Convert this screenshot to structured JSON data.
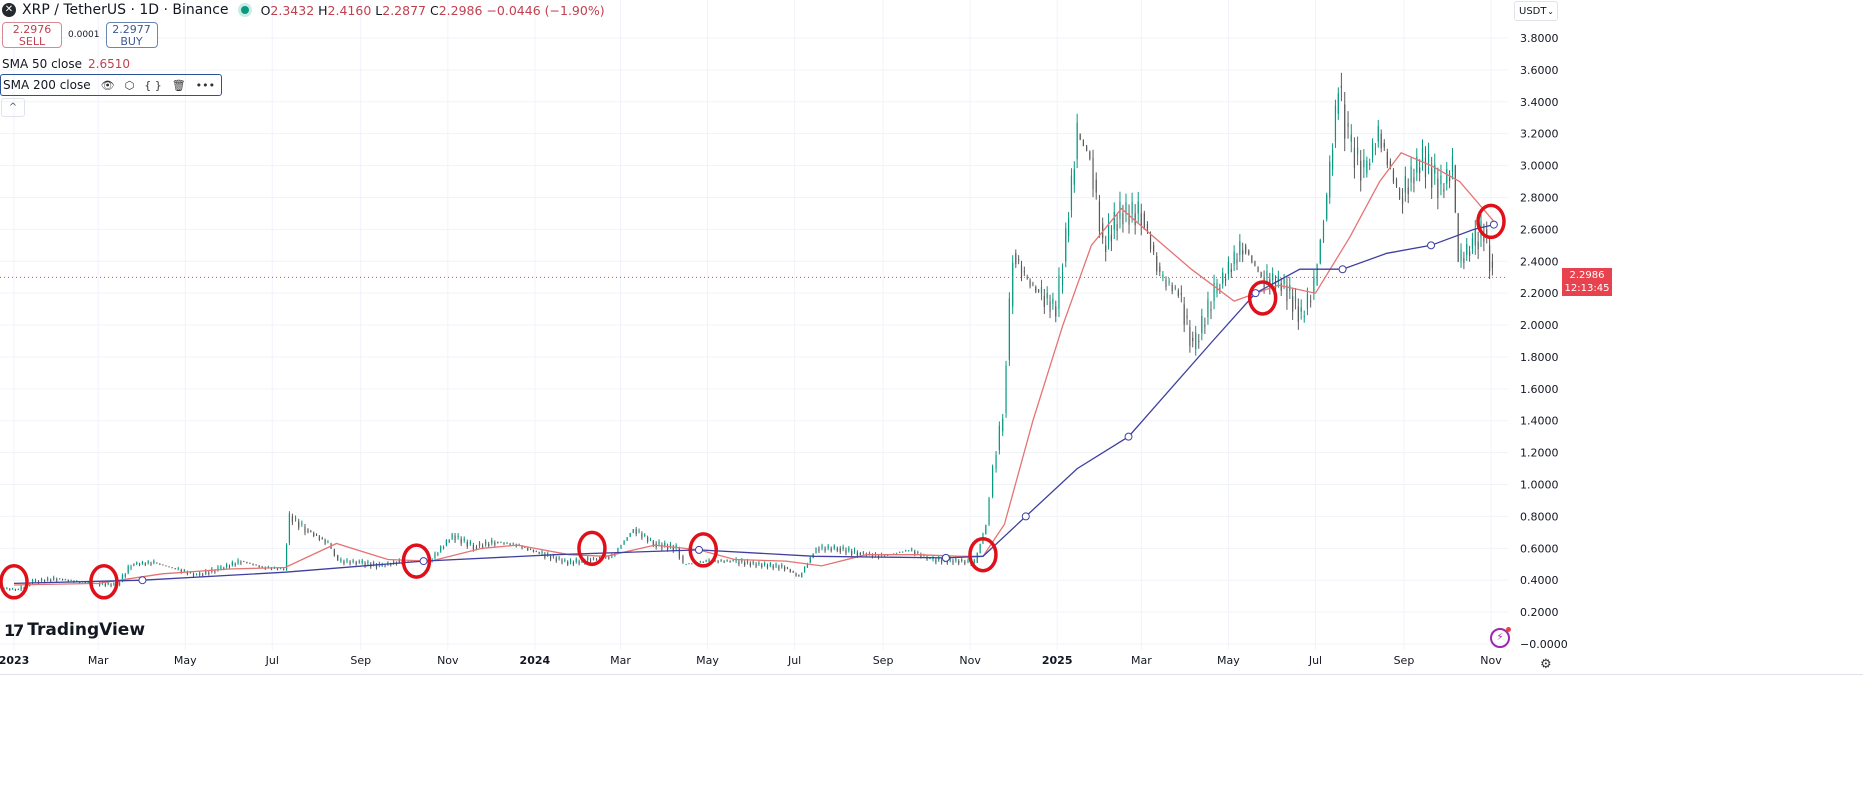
{
  "header": {
    "symbol_title": "XRP / TetherUS · 1D · Binance",
    "ohlc": {
      "o_label": "O",
      "o": "2.3432",
      "h_label": "H",
      "h": "2.4160",
      "l_label": "L",
      "l": "2.2877",
      "c_label": "C",
      "c": "2.2986",
      "change": "−0.0446 (−1.90%)"
    },
    "sell": {
      "price": "2.2976",
      "label": "SELL"
    },
    "spread": "0.0001",
    "buy": {
      "price": "2.2977",
      "label": "BUY"
    },
    "indicators": [
      {
        "label": "SMA 50 close",
        "value": "2.6510",
        "color": "#e57373"
      },
      {
        "label": "SMA 200 close",
        "color": "#3f3fa0",
        "icons": [
          "eye-icon",
          "settings-icon",
          "source-code-icon",
          "trash-icon",
          "more-icon"
        ]
      }
    ],
    "currency": "USDT",
    "logo": "TradingView"
  },
  "price_label": {
    "price": "2.2986",
    "countdown": "12:13:45",
    "color": "#e8424e"
  },
  "chart_data": {
    "type": "candlestick",
    "y_ticks": [
      "3.8000",
      "3.6000",
      "3.4000",
      "3.2000",
      "3.0000",
      "2.8000",
      "2.6000",
      "2.4000",
      "2.2000",
      "2.0000",
      "1.8000",
      "1.6000",
      "1.4000",
      "1.2000",
      "1.0000",
      "0.8000",
      "0.6000",
      "0.4000",
      "0.2000",
      "−0.0000"
    ],
    "ylim": [
      0,
      3.8
    ],
    "x_ticks": [
      {
        "label": "2023",
        "date": "2023-01-01"
      },
      {
        "label": "Mar",
        "date": "2023-03-01"
      },
      {
        "label": "May",
        "date": "2023-05-01"
      },
      {
        "label": "Jul",
        "date": "2023-07-01"
      },
      {
        "label": "Sep",
        "date": "2023-09-01"
      },
      {
        "label": "Nov",
        "date": "2023-11-01"
      },
      {
        "label": "2024",
        "date": "2024-01-01"
      },
      {
        "label": "Mar",
        "date": "2024-03-01"
      },
      {
        "label": "May",
        "date": "2024-05-01"
      },
      {
        "label": "Jul",
        "date": "2024-07-01"
      },
      {
        "label": "Sep",
        "date": "2024-09-01"
      },
      {
        "label": "Nov",
        "date": "2024-11-01"
      },
      {
        "label": "2025",
        "date": "2025-01-01"
      },
      {
        "label": "Mar",
        "date": "2025-03-01"
      },
      {
        "label": "May",
        "date": "2025-05-01"
      },
      {
        "label": "Jul",
        "date": "2025-07-01"
      },
      {
        "label": "Sep",
        "date": "2025-09-01"
      },
      {
        "label": "Nov",
        "date": "2025-11-01"
      }
    ],
    "price": [
      [
        "2022-12-22",
        0.35
      ],
      [
        "2023-01-05",
        0.34
      ],
      [
        "2023-01-15",
        0.39
      ],
      [
        "2023-02-01",
        0.41
      ],
      [
        "2023-02-15",
        0.39
      ],
      [
        "2023-03-01",
        0.38
      ],
      [
        "2023-03-15",
        0.37
      ],
      [
        "2023-03-25",
        0.5
      ],
      [
        "2023-04-10",
        0.51
      ],
      [
        "2023-04-25",
        0.47
      ],
      [
        "2023-05-10",
        0.43
      ],
      [
        "2023-05-25",
        0.47
      ],
      [
        "2023-06-10",
        0.52
      ],
      [
        "2023-06-25",
        0.48
      ],
      [
        "2023-07-10",
        0.47
      ],
      [
        "2023-07-14",
        0.8
      ],
      [
        "2023-07-25",
        0.72
      ],
      [
        "2023-08-10",
        0.63
      ],
      [
        "2023-08-17",
        0.52
      ],
      [
        "2023-09-01",
        0.51
      ],
      [
        "2023-09-15",
        0.49
      ],
      [
        "2023-10-01",
        0.52
      ],
      [
        "2023-10-20",
        0.52
      ],
      [
        "2023-11-05",
        0.68
      ],
      [
        "2023-11-20",
        0.61
      ],
      [
        "2023-12-05",
        0.64
      ],
      [
        "2023-12-20",
        0.62
      ],
      [
        "2024-01-05",
        0.57
      ],
      [
        "2024-01-25",
        0.51
      ],
      [
        "2024-02-10",
        0.53
      ],
      [
        "2024-02-25",
        0.55
      ],
      [
        "2024-03-11",
        0.72
      ],
      [
        "2024-03-25",
        0.63
      ],
      [
        "2024-04-10",
        0.6
      ],
      [
        "2024-04-15",
        0.5
      ],
      [
        "2024-05-01",
        0.52
      ],
      [
        "2024-05-20",
        0.52
      ],
      [
        "2024-06-05",
        0.5
      ],
      [
        "2024-06-25",
        0.48
      ],
      [
        "2024-07-05",
        0.42
      ],
      [
        "2024-07-17",
        0.6
      ],
      [
        "2024-08-01",
        0.6
      ],
      [
        "2024-08-15",
        0.57
      ],
      [
        "2024-09-01",
        0.55
      ],
      [
        "2024-09-20",
        0.59
      ],
      [
        "2024-10-05",
        0.53
      ],
      [
        "2024-10-25",
        0.52
      ],
      [
        "2024-11-05",
        0.51
      ],
      [
        "2024-11-13",
        0.75
      ],
      [
        "2024-11-18",
        1.1
      ],
      [
        "2024-11-25",
        1.45
      ],
      [
        "2024-12-02",
        2.45
      ],
      [
        "2024-12-10",
        2.3
      ],
      [
        "2024-12-20",
        2.2
      ],
      [
        "2025-01-01",
        2.1
      ],
      [
        "2025-01-06",
        2.4
      ],
      [
        "2025-01-16",
        3.2
      ],
      [
        "2025-01-25",
        3.05
      ],
      [
        "2025-02-03",
        2.5
      ],
      [
        "2025-02-15",
        2.7
      ],
      [
        "2025-03-02",
        2.7
      ],
      [
        "2025-03-15",
        2.3
      ],
      [
        "2025-03-28",
        2.2
      ],
      [
        "2025-04-07",
        1.85
      ],
      [
        "2025-04-22",
        2.2
      ],
      [
        "2025-05-12",
        2.5
      ],
      [
        "2025-05-25",
        2.3
      ],
      [
        "2025-06-10",
        2.25
      ],
      [
        "2025-06-22",
        2.05
      ],
      [
        "2025-07-01",
        2.25
      ],
      [
        "2025-07-10",
        2.8
      ],
      [
        "2025-07-18",
        3.5
      ],
      [
        "2025-07-25",
        3.15
      ],
      [
        "2025-08-05",
        2.95
      ],
      [
        "2025-08-15",
        3.2
      ],
      [
        "2025-08-30",
        2.8
      ],
      [
        "2025-09-15",
        3.05
      ],
      [
        "2025-09-28",
        2.85
      ],
      [
        "2025-10-06",
        3.0
      ],
      [
        "2025-10-10",
        2.4
      ],
      [
        "2025-10-20",
        2.5
      ],
      [
        "2025-10-28",
        2.6
      ],
      [
        "2025-11-03",
        2.2986
      ]
    ],
    "series": [
      {
        "name": "SMA 50 close",
        "color": "#e57373",
        "points": [
          [
            "2023-01-01",
            0.37
          ],
          [
            "2023-03-01",
            0.38
          ],
          [
            "2023-04-15",
            0.44
          ],
          [
            "2023-06-01",
            0.47
          ],
          [
            "2023-07-10",
            0.48
          ],
          [
            "2023-08-15",
            0.63
          ],
          [
            "2023-09-20",
            0.53
          ],
          [
            "2023-10-20",
            0.52
          ],
          [
            "2023-11-25",
            0.6
          ],
          [
            "2023-12-20",
            0.62
          ],
          [
            "2024-01-25",
            0.56
          ],
          [
            "2024-02-20",
            0.55
          ],
          [
            "2024-03-25",
            0.62
          ],
          [
            "2024-04-25",
            0.59
          ],
          [
            "2024-05-20",
            0.53
          ],
          [
            "2024-06-25",
            0.52
          ],
          [
            "2024-07-20",
            0.49
          ],
          [
            "2024-08-20",
            0.56
          ],
          [
            "2024-09-25",
            0.56
          ],
          [
            "2024-10-25",
            0.55
          ],
          [
            "2024-11-10",
            0.55
          ],
          [
            "2024-11-25",
            0.75
          ],
          [
            "2024-12-15",
            1.4
          ],
          [
            "2025-01-05",
            2.0
          ],
          [
            "2025-01-25",
            2.5
          ],
          [
            "2025-02-15",
            2.73
          ],
          [
            "2025-03-10",
            2.55
          ],
          [
            "2025-04-05",
            2.35
          ],
          [
            "2025-05-05",
            2.15
          ],
          [
            "2025-06-05",
            2.25
          ],
          [
            "2025-07-01",
            2.2
          ],
          [
            "2025-07-25",
            2.55
          ],
          [
            "2025-08-15",
            2.9
          ],
          [
            "2025-08-30",
            3.08
          ],
          [
            "2025-09-20",
            3.0
          ],
          [
            "2025-10-10",
            2.9
          ],
          [
            "2025-11-03",
            2.65
          ]
        ]
      },
      {
        "name": "SMA 200 close",
        "color": "#3f3fa0",
        "points": [
          [
            "2023-01-01",
            0.38
          ],
          [
            "2023-04-01",
            0.4
          ],
          [
            "2023-07-10",
            0.45
          ],
          [
            "2023-10-15",
            0.52
          ],
          [
            "2024-01-15",
            0.56
          ],
          [
            "2024-04-25",
            0.59
          ],
          [
            "2024-07-15",
            0.55
          ],
          [
            "2024-10-15",
            0.54
          ],
          [
            "2024-11-10",
            0.55
          ],
          [
            "2024-12-10",
            0.8
          ],
          [
            "2025-01-15",
            1.1
          ],
          [
            "2025-02-20",
            1.3
          ],
          [
            "2025-04-20",
            1.9
          ],
          [
            "2025-05-20",
            2.2
          ],
          [
            "2025-06-20",
            2.35
          ],
          [
            "2025-07-20",
            2.35
          ],
          [
            "2025-08-20",
            2.45
          ],
          [
            "2025-09-20",
            2.5
          ],
          [
            "2025-10-20",
            2.6
          ],
          [
            "2025-11-03",
            2.63
          ]
        ]
      }
    ],
    "annotations": [
      [
        "2023-01-01",
        0.39
      ],
      [
        "2023-03-05",
        0.39
      ],
      [
        "2023-10-10",
        0.52
      ],
      [
        "2024-02-10",
        0.6
      ],
      [
        "2024-04-28",
        0.59
      ],
      [
        "2024-11-10",
        0.56
      ],
      [
        "2025-05-25",
        2.17
      ],
      [
        "2025-11-01",
        2.65
      ]
    ],
    "last_price": 2.2986,
    "up_color": "#089981",
    "down_color": "#5b5b5b",
    "annotation_color": "#e0101a",
    "grid": true
  }
}
